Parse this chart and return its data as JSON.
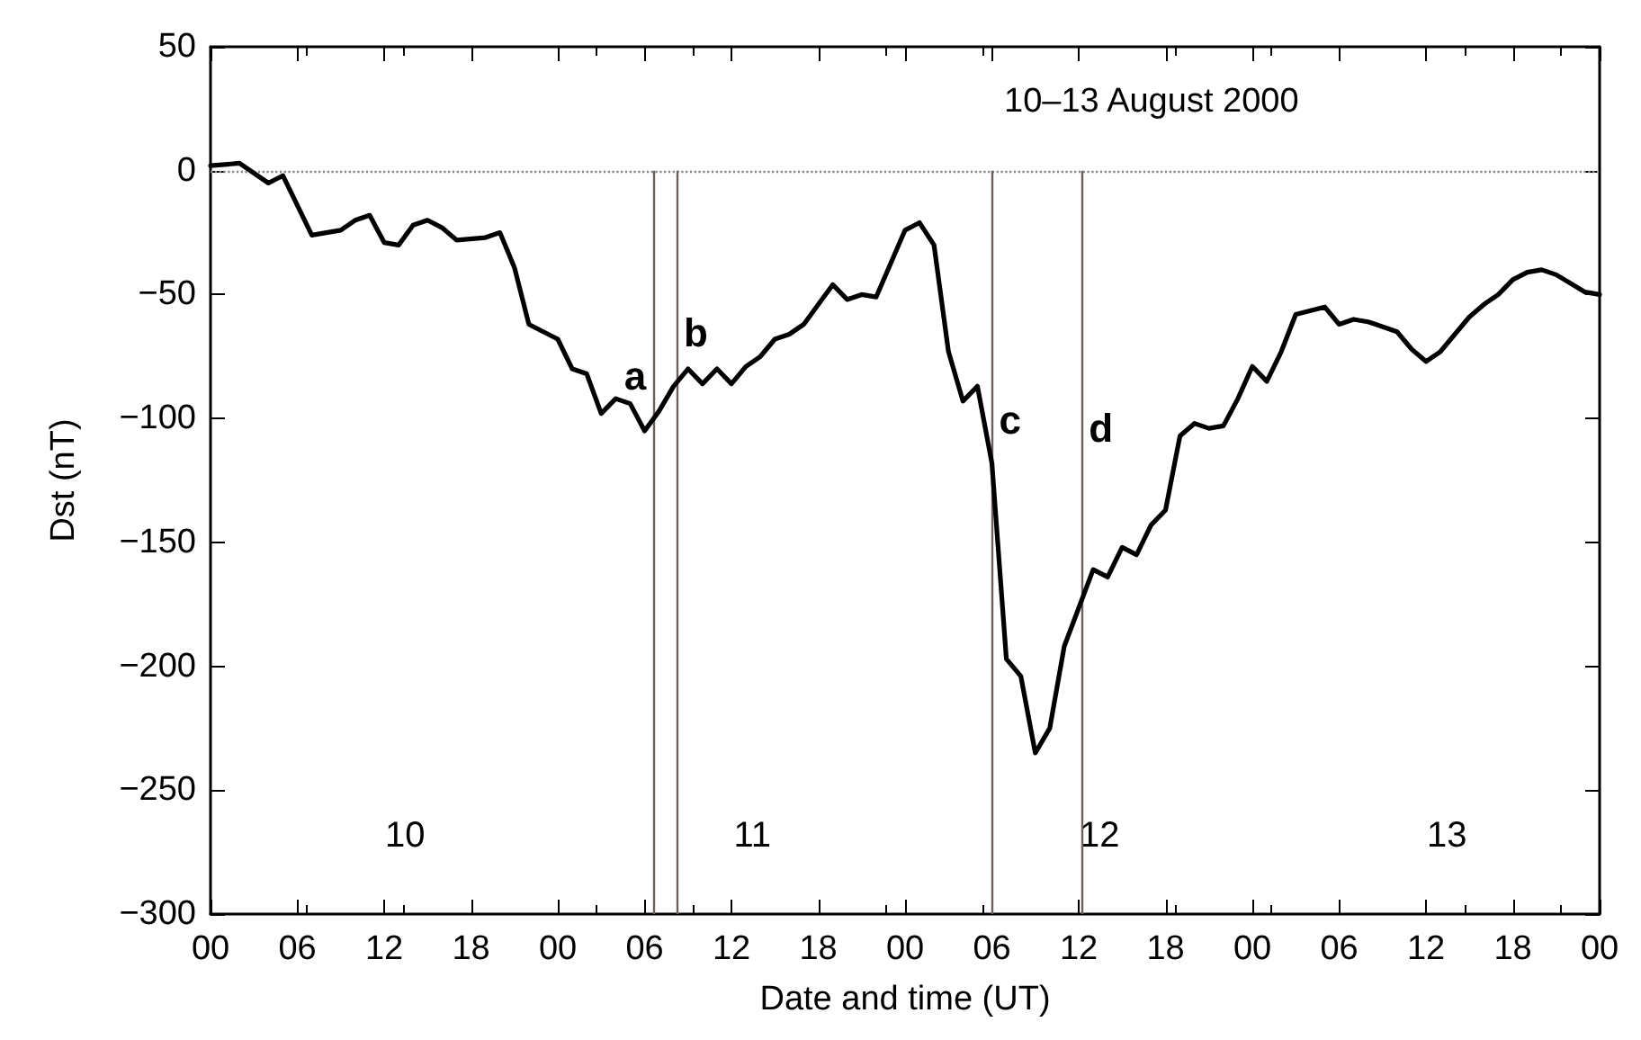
{
  "chart_data": {
    "type": "line",
    "title": "10–13 August 2000",
    "xlabel": "Date and time (UT)",
    "ylabel": "Dst (nT)",
    "series": [
      {
        "color": "#000000",
        "x": [
          0,
          2,
          4,
          5,
          7,
          9,
          10,
          11,
          12,
          13,
          14,
          15,
          16,
          17,
          19,
          20,
          21,
          22,
          24,
          25,
          26,
          27,
          28,
          29,
          30,
          31,
          32,
          33,
          34,
          35,
          36,
          37,
          38,
          39,
          40,
          41,
          43,
          44,
          45,
          46,
          48,
          49,
          50,
          51,
          52,
          53,
          54,
          55,
          56,
          57,
          58,
          59,
          61,
          62,
          63,
          64,
          65,
          66,
          67,
          68,
          69,
          70,
          71,
          72,
          73,
          74,
          75,
          77,
          78,
          79,
          80,
          82,
          83,
          84,
          85,
          87,
          88,
          89,
          90,
          91,
          92,
          93,
          95,
          96
        ],
        "values": [
          2,
          3,
          -5,
          -2,
          -26,
          -24,
          -20,
          -18,
          -29,
          -30,
          -22,
          -20,
          -23,
          -28,
          -27,
          -25,
          -39,
          -62,
          -68,
          -80,
          -82,
          -98,
          -92,
          -94,
          -105,
          -97,
          -87,
          -80,
          -86,
          -80,
          -86,
          -79,
          -75,
          -68,
          -66,
          -62,
          -46,
          -52,
          -50,
          -51,
          -24,
          -21,
          -30,
          -73,
          -93,
          -87,
          -118,
          -197,
          -204,
          -235,
          -225,
          -192,
          -161,
          -164,
          -152,
          -155,
          -143,
          -137,
          -107,
          -102,
          -104,
          -103,
          -92,
          -79,
          -85,
          -73,
          -58,
          -55,
          -62,
          -60,
          -61,
          -65,
          -72,
          -77,
          -73,
          -59,
          -54,
          -50,
          -44,
          -41,
          -40,
          -42,
          -49,
          -50
        ]
      }
    ],
    "xlim": [
      0,
      96
    ],
    "xticks": [
      {
        "value": 0,
        "label": "00"
      },
      {
        "value": 6,
        "label": "06"
      },
      {
        "value": 12,
        "label": "12"
      },
      {
        "value": 18,
        "label": "18"
      },
      {
        "value": 24,
        "label": "00"
      },
      {
        "value": 30,
        "label": "06"
      },
      {
        "value": 36,
        "label": "12"
      },
      {
        "value": 42,
        "label": "18"
      },
      {
        "value": 48,
        "label": "00"
      },
      {
        "value": 54,
        "label": "06"
      },
      {
        "value": 60,
        "label": "12"
      },
      {
        "value": 66,
        "label": "18"
      },
      {
        "value": 72,
        "label": "00"
      },
      {
        "value": 78,
        "label": "06"
      },
      {
        "value": 84,
        "label": "12"
      },
      {
        "value": 90,
        "label": "18"
      },
      {
        "value": 96,
        "label": "00"
      }
    ],
    "ylim": [
      -300,
      50
    ],
    "yticks": [
      -300,
      -250,
      -200,
      -150,
      -100,
      -50,
      0,
      50
    ],
    "grid": false,
    "marker": "none",
    "line_style": "solid",
    "ref_lines": [
      {
        "axis": "y",
        "value": 0,
        "label": null,
        "color": "#8a8a8a",
        "line_style": "dotted"
      },
      {
        "axis": "x",
        "value": 30.6,
        "label": "a",
        "color": "#6e5e5e",
        "line_style": "solid"
      },
      {
        "axis": "x",
        "value": 32.2,
        "label": "b",
        "color": "#6e5e5e",
        "line_style": "solid"
      },
      {
        "axis": "x",
        "value": 54.0,
        "label": "c",
        "color": "#6e5e5e",
        "line_style": "solid"
      },
      {
        "axis": "x",
        "value": 60.2,
        "label": "d",
        "color": "#6e5e5e",
        "line_style": "solid"
      }
    ],
    "annotations": [
      "10",
      "11",
      "12",
      "13"
    ]
  }
}
